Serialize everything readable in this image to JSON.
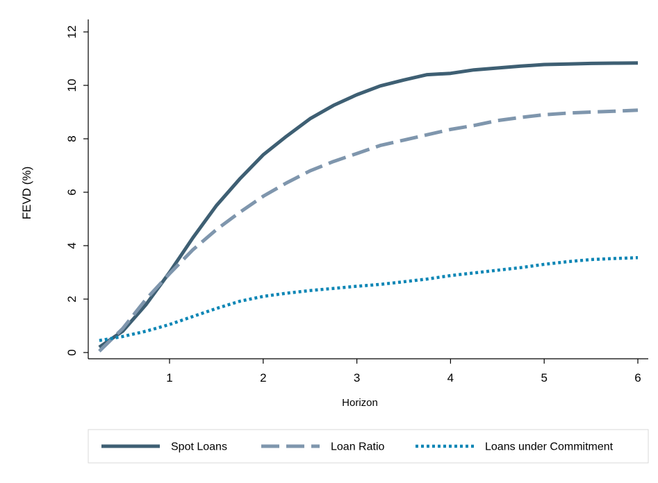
{
  "chart_data": {
    "type": "line",
    "title": "",
    "xlabel": "Horizon",
    "ylabel": "FEVD (%)",
    "xlim": [
      0.25,
      6
    ],
    "ylim": [
      0,
      12
    ],
    "xticks": [
      1,
      2,
      3,
      4,
      5,
      6
    ],
    "yticks": [
      0,
      2,
      4,
      6,
      8,
      10,
      12
    ],
    "grid": false,
    "legend_position": "bottom",
    "series": [
      {
        "name": "Spot Loans",
        "color": "#3e5f73",
        "style": "solid",
        "x": [
          0.25,
          0.5,
          0.75,
          1.0,
          1.25,
          1.5,
          1.75,
          2.0,
          2.25,
          2.5,
          2.75,
          3.0,
          3.25,
          3.5,
          3.75,
          4.0,
          4.25,
          4.5,
          4.75,
          5.0,
          5.25,
          5.5,
          5.75,
          6.0
        ],
        "y": [
          0.2,
          0.8,
          1.8,
          3.0,
          4.3,
          5.5,
          6.5,
          7.4,
          8.1,
          8.75,
          9.25,
          9.65,
          9.98,
          10.2,
          10.4,
          10.45,
          10.58,
          10.65,
          10.72,
          10.78,
          10.8,
          10.82,
          10.83,
          10.84
        ]
      },
      {
        "name": "Loan Ratio",
        "color": "#7f96ad",
        "style": "dashed",
        "x": [
          0.25,
          0.5,
          0.75,
          1.0,
          1.25,
          1.5,
          1.75,
          2.0,
          2.25,
          2.5,
          2.75,
          3.0,
          3.25,
          3.5,
          3.75,
          4.0,
          4.25,
          4.5,
          4.75,
          5.0,
          5.25,
          5.5,
          5.75,
          6.0
        ],
        "y": [
          0.05,
          0.9,
          2.0,
          2.95,
          3.85,
          4.6,
          5.25,
          5.85,
          6.35,
          6.8,
          7.15,
          7.45,
          7.75,
          7.95,
          8.15,
          8.35,
          8.5,
          8.68,
          8.8,
          8.9,
          8.96,
          9.0,
          9.03,
          9.07
        ]
      },
      {
        "name": "Loans under Commitment",
        "color": "#0c86b5",
        "style": "dotted",
        "x": [
          0.25,
          0.5,
          0.75,
          1.0,
          1.25,
          1.5,
          1.75,
          2.0,
          2.25,
          2.5,
          2.75,
          3.0,
          3.25,
          3.5,
          3.75,
          4.0,
          4.25,
          4.5,
          4.75,
          5.0,
          5.25,
          5.5,
          5.75,
          6.0
        ],
        "y": [
          0.45,
          0.6,
          0.8,
          1.05,
          1.35,
          1.65,
          1.92,
          2.1,
          2.22,
          2.32,
          2.4,
          2.48,
          2.55,
          2.65,
          2.75,
          2.88,
          2.98,
          3.08,
          3.18,
          3.3,
          3.4,
          3.48,
          3.52,
          3.55
        ]
      }
    ]
  }
}
